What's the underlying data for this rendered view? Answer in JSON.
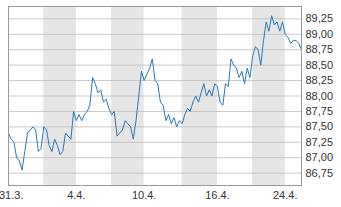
{
  "chart_data": {
    "type": "line",
    "color": "#2a78b8",
    "grid": true,
    "categories": [
      null,
      "31.3.",
      null,
      null,
      null,
      null,
      null,
      null,
      null,
      null,
      null,
      null,
      null,
      null,
      null,
      null,
      null,
      null,
      null,
      null,
      null,
      null,
      null,
      null,
      null,
      "4.4.",
      null,
      null,
      null,
      null,
      null,
      null,
      null,
      null,
      null,
      null,
      null,
      null,
      null,
      null,
      null,
      null,
      null,
      null,
      null,
      null,
      null,
      null,
      null,
      null,
      "10.4.",
      null,
      null,
      null,
      null,
      null,
      null,
      null,
      null,
      null,
      null,
      null,
      null,
      null,
      null,
      null,
      null,
      null,
      null,
      null,
      null,
      null,
      null,
      null,
      null,
      null,
      null,
      "16.4.",
      null,
      null,
      null,
      null,
      null,
      null,
      null,
      null,
      null,
      null,
      null,
      null,
      null,
      null,
      null,
      null,
      null,
      null,
      null,
      null,
      null,
      null,
      null,
      null,
      "24.4.",
      null,
      null,
      null,
      null,
      null,
      null
    ],
    "values": [
      87.4,
      87.3,
      87.25,
      87.0,
      86.95,
      86.8,
      87.1,
      87.4,
      87.45,
      87.5,
      87.45,
      87.1,
      87.15,
      87.5,
      87.45,
      87.2,
      87.1,
      87.3,
      87.2,
      87.05,
      87.1,
      87.4,
      87.35,
      87.3,
      87.75,
      87.6,
      87.7,
      87.6,
      87.7,
      87.75,
      87.85,
      88.3,
      88.2,
      88.05,
      88.1,
      87.9,
      87.95,
      87.8,
      87.7,
      87.75,
      87.35,
      87.4,
      87.45,
      87.6,
      87.55,
      87.5,
      87.3,
      87.6,
      88.0,
      88.4,
      88.25,
      88.35,
      88.45,
      88.6,
      88.25,
      88.2,
      87.9,
      87.85,
      87.6,
      87.7,
      87.55,
      87.65,
      87.5,
      87.6,
      87.55,
      87.7,
      87.8,
      87.75,
      87.9,
      88.0,
      87.9,
      88.05,
      88.2,
      88.0,
      88.1,
      88.0,
      88.2,
      88.15,
      87.9,
      87.85,
      88.2,
      88.15,
      88.6,
      88.5,
      88.45,
      88.3,
      88.4,
      88.2,
      88.45,
      88.3,
      88.65,
      88.8,
      88.75,
      88.5,
      88.9,
      89.2,
      89.05,
      89.3,
      89.15,
      89.2,
      89.05,
      89.2,
      89.0,
      88.95,
      88.85,
      88.9,
      88.9,
      88.85,
      88.75
    ],
    "ylim": [
      86.55,
      89.45
    ],
    "yticks": [
      {
        "value": 86.75,
        "label": "86,75"
      },
      {
        "value": 87,
        "label": "87,00"
      },
      {
        "value": 87.25,
        "label": "87,25"
      },
      {
        "value": 87.5,
        "label": "87,50"
      },
      {
        "value": 87.75,
        "label": "87,75"
      },
      {
        "value": 88,
        "label": "88,00"
      },
      {
        "value": 88.25,
        "label": "88,25"
      },
      {
        "value": 88.5,
        "label": "88,50"
      },
      {
        "value": 88.75,
        "label": "88,75"
      },
      {
        "value": 89,
        "label": "89,00"
      },
      {
        "value": 89.25,
        "label": "89,25"
      }
    ]
  }
}
